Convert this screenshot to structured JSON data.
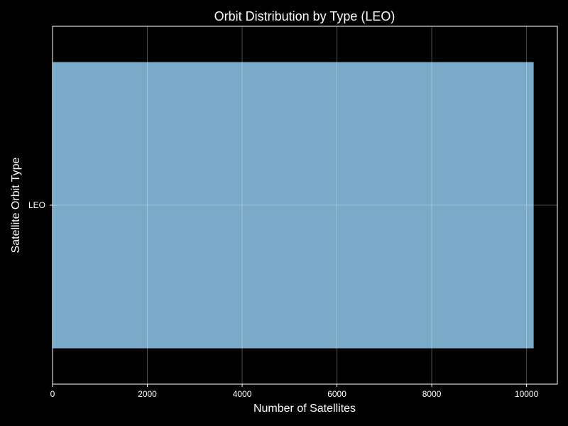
{
  "chart_data": {
    "type": "bar",
    "orientation": "horizontal",
    "title": "Orbit Distribution by Type (LEO)",
    "xlabel": "Number of Satellites",
    "ylabel": "Satellite Orbit Type",
    "categories": [
      "LEO"
    ],
    "values": [
      10150
    ],
    "xlim": [
      0,
      10650
    ],
    "xticks": [
      0,
      2000,
      4000,
      6000,
      8000,
      10000
    ],
    "grid": true,
    "legend": "none",
    "colors": {
      "background": "#000000",
      "bar": "#7aaac8",
      "axis": "#ffffff",
      "grid": "#ffffff",
      "text": "#ffffff"
    }
  }
}
